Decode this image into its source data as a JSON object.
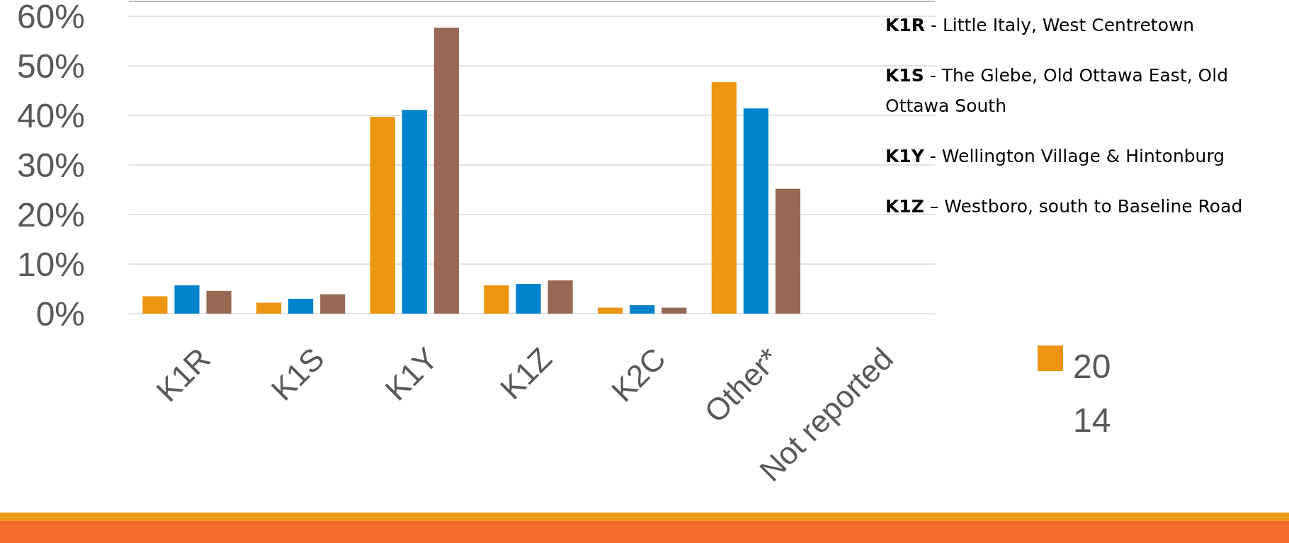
{
  "chart_data": {
    "type": "bar",
    "categories": [
      "K1R",
      "K1S",
      "K1Y",
      "K1Z",
      "K2C",
      "Other*",
      "Not reported"
    ],
    "series": [
      {
        "name": "2014",
        "color": "#ed9411",
        "values": [
          3.5,
          2.2,
          39.7,
          5.7,
          1.2,
          46.7,
          null
        ]
      },
      {
        "color": "#0082cc",
        "values": [
          5.7,
          3.0,
          41.1,
          6.0,
          1.7,
          41.4,
          null
        ]
      },
      {
        "color": "#996853",
        "values": [
          4.6,
          3.9,
          57.7,
          6.7,
          1.2,
          25.2,
          null
        ]
      }
    ],
    "ylim": [
      0,
      60
    ],
    "yticks": [
      {
        "value": 0,
        "label": "0%"
      },
      {
        "value": 10,
        "label": "10%"
      },
      {
        "value": 20,
        "label": "20%"
      },
      {
        "value": 30,
        "label": "30%"
      },
      {
        "value": 40,
        "label": "40%"
      },
      {
        "value": 50,
        "label": "50%"
      },
      {
        "value": 60,
        "label": "60%"
      }
    ],
    "grid": "y",
    "legend": "right",
    "annotations": [
      "K1R - Little Italy, West Centretown",
      "K1S - The Glebe, Old Ottawa East, Old Ottawa South",
      "K1Y - Wellington Village & Hintonburg",
      "K1Z – Westboro, south to Baseline Road"
    ]
  }
}
